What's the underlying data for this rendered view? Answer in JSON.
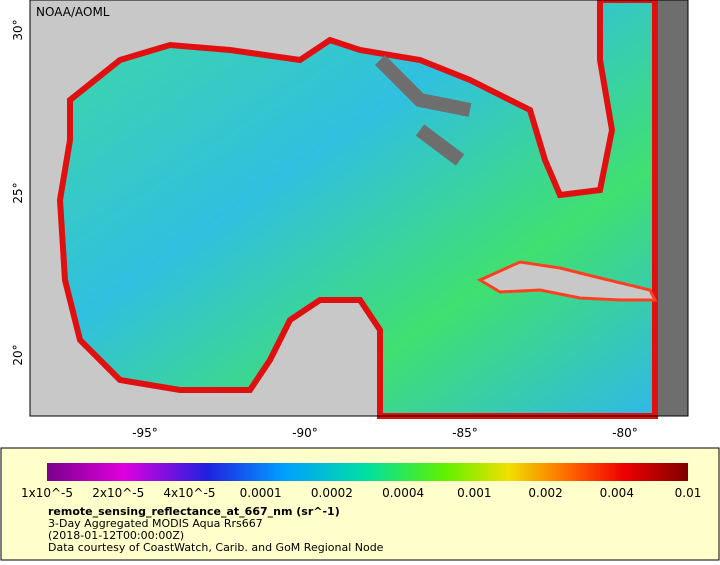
{
  "header": {
    "credit": "NOAA/AOML"
  },
  "map": {
    "lat_labels": [
      "30°",
      "25°",
      "20°"
    ],
    "lon_labels": [
      "-95°",
      "-90°",
      "-85°",
      "-80°"
    ]
  },
  "legend": {
    "ticks": [
      "1x10^-5",
      "2x10^-5",
      "4x10^-5",
      "0.0001",
      "0.0002",
      "0.0004",
      "0.001",
      "0.002",
      "0.004",
      "0.01"
    ],
    "title": "remote_sensing_reflectance_at_667_nm (sr^-1)",
    "lines": [
      "3-Day Aggregated MODIS Aqua Rrs667",
      "(2018-01-12T00:00:00Z)",
      "Data courtesy of CoastWatch, Carib. and GoM Regional Node"
    ]
  }
}
